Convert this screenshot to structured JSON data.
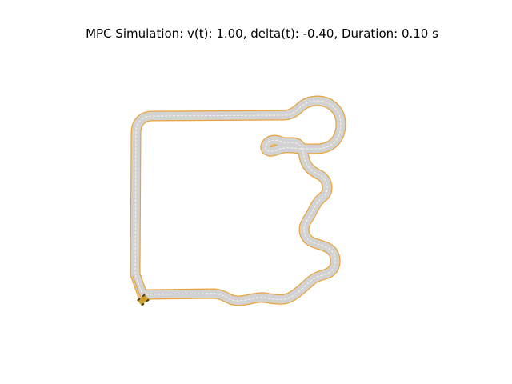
{
  "figure": {
    "title": "MPC Simulation: v(t): 1.00, delta(t): -0.40, Duration: 0.10 s"
  },
  "simulation": {
    "velocity": 1.0,
    "steering_delta": -0.4,
    "duration_s": 0.1
  },
  "colors": {
    "track_boundary": "#e8a33a",
    "track_surface": "#d0d0d0",
    "track_centerline": "#ffffff",
    "vehicle": "#c99a1a",
    "vehicle_wheels": "#4a3a10",
    "background": "#ffffff"
  }
}
